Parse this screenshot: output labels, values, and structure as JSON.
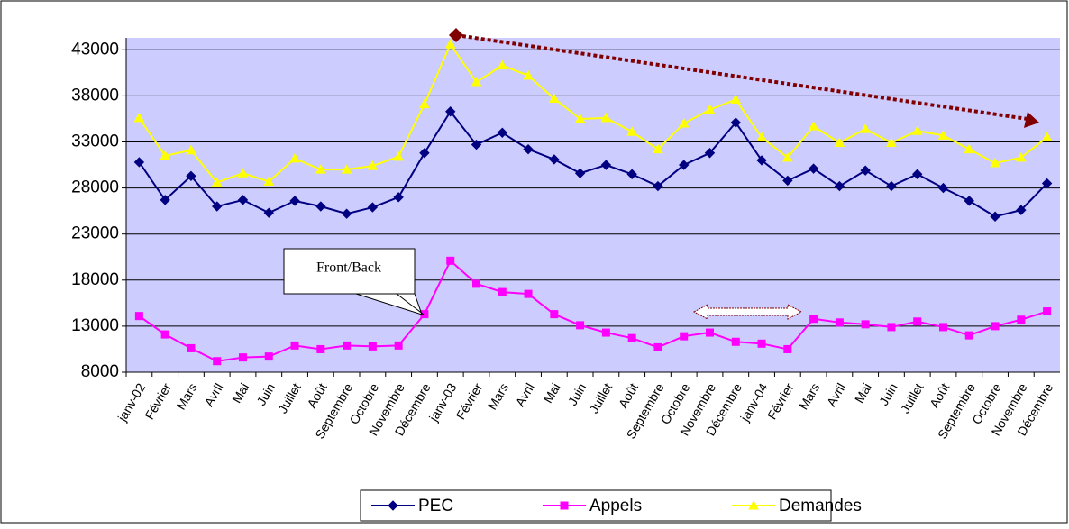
{
  "chart_data": {
    "type": "line",
    "categories": [
      "janv-02",
      "Février",
      "Mars",
      "Avril",
      "Mai",
      "Juin",
      "Juillet",
      "Août",
      "Septembre",
      "Octobre",
      "Novembre",
      "Décembre",
      "janv-03",
      "Février",
      "Mars",
      "Avril",
      "Mai",
      "Juin",
      "Juillet",
      "Août",
      "Septembre",
      "Octobre",
      "Novembre",
      "Décembre",
      "janv-04",
      "Février",
      "Mars",
      "Avril",
      "Mai",
      "Juin",
      "Juillet",
      "Août",
      "Septembre",
      "Octobre",
      "Novembre",
      "Décembre"
    ],
    "series": [
      {
        "name": "PEC",
        "color": "#000080",
        "marker": "diamond",
        "values": [
          30800,
          26700,
          29300,
          26000,
          26700,
          25300,
          26600,
          26000,
          25200,
          25900,
          27000,
          31800,
          36300,
          32700,
          34000,
          32200,
          31100,
          29600,
          30500,
          29500,
          28200,
          30500,
          31800,
          35100,
          31000,
          28800,
          30100,
          28200,
          29900,
          28200,
          29500,
          28000,
          26600,
          24900,
          25600,
          28500
        ]
      },
      {
        "name": "Appels",
        "color": "#ff00ff",
        "marker": "square",
        "values": [
          14100,
          12100,
          10600,
          9200,
          9600,
          9700,
          10900,
          10500,
          10900,
          10800,
          10900,
          14300,
          20100,
          17600,
          16700,
          16500,
          14300,
          13100,
          12300,
          11700,
          10700,
          11900,
          12300,
          11300,
          11100,
          10500,
          13800,
          13400,
          13200,
          12900,
          13500,
          12900,
          12000,
          13000,
          13700,
          14600
        ]
      },
      {
        "name": "Demandes",
        "color": "#ffff00",
        "marker": "triangle",
        "values": [
          35600,
          31500,
          32100,
          28600,
          29600,
          28700,
          31200,
          30000,
          30000,
          30400,
          31400,
          37100,
          43600,
          39500,
          41300,
          40200,
          37700,
          35500,
          35600,
          34100,
          32200,
          35000,
          36500,
          37600,
          33500,
          31300,
          34700,
          32900,
          34400,
          32900,
          34200,
          33700,
          32200,
          30700,
          31300,
          33500
        ]
      }
    ],
    "ylim": [
      8000,
      44300
    ],
    "yticks": [
      8000,
      13000,
      18000,
      23000,
      28000,
      33000,
      38000,
      43000
    ],
    "grid": true,
    "annotations": [
      "Front/Back"
    ],
    "legend": "bottom"
  }
}
